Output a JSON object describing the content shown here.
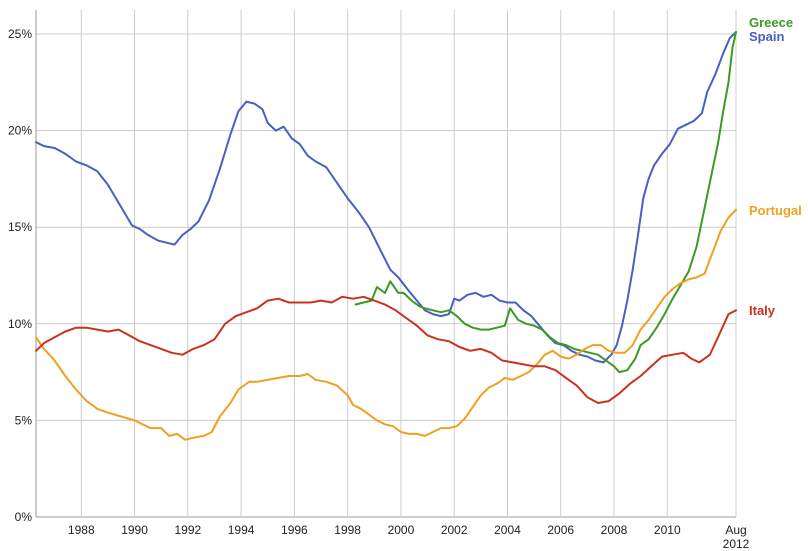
{
  "chart_data": {
    "type": "line",
    "title": "",
    "xlabel": "",
    "ylabel": "",
    "xlim": [
      1986.3,
      2012.58
    ],
    "ylim": [
      0,
      25
    ],
    "grid": true,
    "legend": "labels at right end of lines",
    "y_ticks": [
      {
        "value": 0,
        "label": "0%"
      },
      {
        "value": 5,
        "label": "5%"
      },
      {
        "value": 10,
        "label": "10%"
      },
      {
        "value": 15,
        "label": "15%"
      },
      {
        "value": 20,
        "label": "20%"
      },
      {
        "value": 25,
        "label": "25%"
      }
    ],
    "x_ticks": [
      {
        "value": 1988,
        "label": "1988"
      },
      {
        "value": 1990,
        "label": "1990"
      },
      {
        "value": 1992,
        "label": "1992"
      },
      {
        "value": 1994,
        "label": "1994"
      },
      {
        "value": 1996,
        "label": "1996"
      },
      {
        "value": 1998,
        "label": "1998"
      },
      {
        "value": 2000,
        "label": "2000"
      },
      {
        "value": 2002,
        "label": "2002"
      },
      {
        "value": 2004,
        "label": "2004"
      },
      {
        "value": 2006,
        "label": "2006"
      },
      {
        "value": 2008,
        "label": "2008"
      },
      {
        "value": 2010,
        "label": "2010"
      }
    ],
    "end_tick": {
      "value": 2012.58,
      "label_line1": "Aug",
      "label_line2": "2012"
    },
    "series": [
      {
        "name": "Spain",
        "color": "#4a5fc1",
        "points": [
          [
            1986.3,
            19.4
          ],
          [
            1986.6,
            19.2
          ],
          [
            1987.0,
            19.1
          ],
          [
            1987.4,
            18.8
          ],
          [
            1987.8,
            18.4
          ],
          [
            1988.2,
            18.2
          ],
          [
            1988.6,
            17.9
          ],
          [
            1989.0,
            17.2
          ],
          [
            1989.3,
            16.5
          ],
          [
            1989.6,
            15.8
          ],
          [
            1989.9,
            15.1
          ],
          [
            1990.2,
            14.9
          ],
          [
            1990.5,
            14.6
          ],
          [
            1990.9,
            14.3
          ],
          [
            1991.2,
            14.2
          ],
          [
            1991.5,
            14.1
          ],
          [
            1991.8,
            14.6
          ],
          [
            1992.1,
            14.9
          ],
          [
            1992.4,
            15.3
          ],
          [
            1992.8,
            16.4
          ],
          [
            1993.2,
            18.0
          ],
          [
            1993.6,
            19.8
          ],
          [
            1993.9,
            21.0
          ],
          [
            1994.2,
            21.5
          ],
          [
            1994.5,
            21.4
          ],
          [
            1994.8,
            21.1
          ],
          [
            1995.0,
            20.4
          ],
          [
            1995.3,
            20.0
          ],
          [
            1995.6,
            20.2
          ],
          [
            1995.9,
            19.6
          ],
          [
            1996.2,
            19.3
          ],
          [
            1996.5,
            18.7
          ],
          [
            1996.8,
            18.4
          ],
          [
            1997.2,
            18.1
          ],
          [
            1997.6,
            17.3
          ],
          [
            1998.0,
            16.5
          ],
          [
            1998.4,
            15.8
          ],
          [
            1998.8,
            15.0
          ],
          [
            1999.2,
            13.9
          ],
          [
            1999.6,
            12.8
          ],
          [
            1999.9,
            12.4
          ],
          [
            2000.3,
            11.7
          ],
          [
            2000.6,
            11.2
          ],
          [
            2000.9,
            10.7
          ],
          [
            2001.2,
            10.5
          ],
          [
            2001.5,
            10.4
          ],
          [
            2001.8,
            10.5
          ],
          [
            2002.0,
            11.3
          ],
          [
            2002.2,
            11.2
          ],
          [
            2002.5,
            11.5
          ],
          [
            2002.8,
            11.6
          ],
          [
            2003.1,
            11.4
          ],
          [
            2003.4,
            11.5
          ],
          [
            2003.7,
            11.2
          ],
          [
            2004.0,
            11.1
          ],
          [
            2004.3,
            11.1
          ],
          [
            2004.6,
            10.7
          ],
          [
            2004.9,
            10.4
          ],
          [
            2005.2,
            9.9
          ],
          [
            2005.5,
            9.4
          ],
          [
            2005.8,
            9.0
          ],
          [
            2006.1,
            8.9
          ],
          [
            2006.4,
            8.6
          ],
          [
            2006.7,
            8.4
          ],
          [
            2007.0,
            8.3
          ],
          [
            2007.3,
            8.1
          ],
          [
            2007.6,
            8.0
          ],
          [
            2007.9,
            8.4
          ],
          [
            2008.1,
            8.9
          ],
          [
            2008.3,
            9.9
          ],
          [
            2008.5,
            11.2
          ],
          [
            2008.7,
            12.8
          ],
          [
            2008.9,
            14.6
          ],
          [
            2009.1,
            16.5
          ],
          [
            2009.3,
            17.5
          ],
          [
            2009.5,
            18.2
          ],
          [
            2009.8,
            18.8
          ],
          [
            2010.1,
            19.3
          ],
          [
            2010.4,
            20.1
          ],
          [
            2010.7,
            20.3
          ],
          [
            2011.0,
            20.5
          ],
          [
            2011.3,
            20.9
          ],
          [
            2011.5,
            22.0
          ],
          [
            2011.8,
            22.9
          ],
          [
            2012.1,
            24.0
          ],
          [
            2012.35,
            24.8
          ],
          [
            2012.58,
            25.1
          ]
        ]
      },
      {
        "name": "Greece",
        "color": "#3b9a24",
        "points": [
          [
            1998.3,
            11.0
          ],
          [
            1998.6,
            11.1
          ],
          [
            1998.9,
            11.2
          ],
          [
            1999.1,
            11.9
          ],
          [
            1999.4,
            11.6
          ],
          [
            1999.6,
            12.2
          ],
          [
            1999.9,
            11.6
          ],
          [
            2000.1,
            11.6
          ],
          [
            2000.4,
            11.2
          ],
          [
            2000.7,
            10.9
          ],
          [
            2000.9,
            10.8
          ],
          [
            2001.2,
            10.7
          ],
          [
            2001.5,
            10.6
          ],
          [
            2001.8,
            10.7
          ],
          [
            2002.1,
            10.4
          ],
          [
            2002.4,
            10.0
          ],
          [
            2002.7,
            9.8
          ],
          [
            2003.0,
            9.7
          ],
          [
            2003.3,
            9.7
          ],
          [
            2003.6,
            9.8
          ],
          [
            2003.9,
            9.9
          ],
          [
            2004.1,
            10.8
          ],
          [
            2004.4,
            10.2
          ],
          [
            2004.7,
            10.0
          ],
          [
            2005.0,
            9.9
          ],
          [
            2005.3,
            9.7
          ],
          [
            2005.6,
            9.3
          ],
          [
            2005.9,
            9.0
          ],
          [
            2006.2,
            8.9
          ],
          [
            2006.5,
            8.7
          ],
          [
            2006.8,
            8.6
          ],
          [
            2007.1,
            8.5
          ],
          [
            2007.4,
            8.4
          ],
          [
            2007.7,
            8.1
          ],
          [
            2008.0,
            7.8
          ],
          [
            2008.2,
            7.5
          ],
          [
            2008.5,
            7.6
          ],
          [
            2008.8,
            8.2
          ],
          [
            2009.0,
            8.9
          ],
          [
            2009.3,
            9.2
          ],
          [
            2009.6,
            9.8
          ],
          [
            2009.9,
            10.5
          ],
          [
            2010.2,
            11.3
          ],
          [
            2010.5,
            12.0
          ],
          [
            2010.8,
            12.7
          ],
          [
            2011.1,
            14.0
          ],
          [
            2011.4,
            16.0
          ],
          [
            2011.7,
            18.0
          ],
          [
            2011.9,
            19.3
          ],
          [
            2012.1,
            21.0
          ],
          [
            2012.3,
            22.5
          ],
          [
            2012.45,
            24.3
          ],
          [
            2012.58,
            25.1
          ]
        ]
      },
      {
        "name": "Portugal",
        "color": "#f0a020",
        "points": [
          [
            1986.3,
            9.3
          ],
          [
            1986.6,
            8.7
          ],
          [
            1987.0,
            8.1
          ],
          [
            1987.4,
            7.3
          ],
          [
            1987.8,
            6.6
          ],
          [
            1988.2,
            6.0
          ],
          [
            1988.6,
            5.6
          ],
          [
            1989.0,
            5.4
          ],
          [
            1989.5,
            5.2
          ],
          [
            1990.0,
            5.0
          ],
          [
            1990.3,
            4.8
          ],
          [
            1990.6,
            4.6
          ],
          [
            1991.0,
            4.6
          ],
          [
            1991.3,
            4.2
          ],
          [
            1991.6,
            4.3
          ],
          [
            1991.9,
            4.0
          ],
          [
            1992.2,
            4.1
          ],
          [
            1992.6,
            4.2
          ],
          [
            1992.9,
            4.4
          ],
          [
            1993.2,
            5.2
          ],
          [
            1993.6,
            5.9
          ],
          [
            1993.9,
            6.6
          ],
          [
            1994.3,
            7.0
          ],
          [
            1994.6,
            7.0
          ],
          [
            1995.0,
            7.1
          ],
          [
            1995.4,
            7.2
          ],
          [
            1995.8,
            7.3
          ],
          [
            1996.2,
            7.3
          ],
          [
            1996.5,
            7.4
          ],
          [
            1996.8,
            7.1
          ],
          [
            1997.2,
            7.0
          ],
          [
            1997.6,
            6.8
          ],
          [
            1998.0,
            6.3
          ],
          [
            1998.2,
            5.8
          ],
          [
            1998.5,
            5.6
          ],
          [
            1998.8,
            5.3
          ],
          [
            1999.1,
            5.0
          ],
          [
            1999.4,
            4.8
          ],
          [
            1999.7,
            4.7
          ],
          [
            2000.0,
            4.4
          ],
          [
            2000.3,
            4.3
          ],
          [
            2000.6,
            4.3
          ],
          [
            2000.9,
            4.2
          ],
          [
            2001.2,
            4.4
          ],
          [
            2001.5,
            4.6
          ],
          [
            2001.8,
            4.6
          ],
          [
            2002.1,
            4.7
          ],
          [
            2002.4,
            5.1
          ],
          [
            2002.7,
            5.7
          ],
          [
            2003.0,
            6.3
          ],
          [
            2003.3,
            6.7
          ],
          [
            2003.6,
            6.9
          ],
          [
            2003.9,
            7.2
          ],
          [
            2004.2,
            7.1
          ],
          [
            2004.5,
            7.3
          ],
          [
            2004.8,
            7.5
          ],
          [
            2005.1,
            7.9
          ],
          [
            2005.4,
            8.4
          ],
          [
            2005.7,
            8.6
          ],
          [
            2006.0,
            8.3
          ],
          [
            2006.3,
            8.2
          ],
          [
            2006.6,
            8.4
          ],
          [
            2006.9,
            8.7
          ],
          [
            2007.2,
            8.9
          ],
          [
            2007.5,
            8.9
          ],
          [
            2007.8,
            8.6
          ],
          [
            2008.1,
            8.5
          ],
          [
            2008.4,
            8.5
          ],
          [
            2008.7,
            8.9
          ],
          [
            2009.0,
            9.7
          ],
          [
            2009.3,
            10.2
          ],
          [
            2009.6,
            10.8
          ],
          [
            2009.9,
            11.4
          ],
          [
            2010.2,
            11.8
          ],
          [
            2010.5,
            12.1
          ],
          [
            2010.8,
            12.3
          ],
          [
            2011.1,
            12.4
          ],
          [
            2011.4,
            12.6
          ],
          [
            2011.7,
            13.7
          ],
          [
            2012.0,
            14.8
          ],
          [
            2012.3,
            15.5
          ],
          [
            2012.58,
            15.9
          ]
        ]
      },
      {
        "name": "Italy",
        "color": "#c8321e",
        "points": [
          [
            1986.3,
            8.6
          ],
          [
            1986.6,
            9.0
          ],
          [
            1987.0,
            9.3
          ],
          [
            1987.4,
            9.6
          ],
          [
            1987.8,
            9.8
          ],
          [
            1988.2,
            9.8
          ],
          [
            1988.6,
            9.7
          ],
          [
            1989.0,
            9.6
          ],
          [
            1989.4,
            9.7
          ],
          [
            1989.8,
            9.4
          ],
          [
            1990.2,
            9.1
          ],
          [
            1990.6,
            8.9
          ],
          [
            1991.0,
            8.7
          ],
          [
            1991.4,
            8.5
          ],
          [
            1991.8,
            8.4
          ],
          [
            1992.2,
            8.7
          ],
          [
            1992.6,
            8.9
          ],
          [
            1993.0,
            9.2
          ],
          [
            1993.4,
            10.0
          ],
          [
            1993.8,
            10.4
          ],
          [
            1994.2,
            10.6
          ],
          [
            1994.6,
            10.8
          ],
          [
            1995.0,
            11.2
          ],
          [
            1995.4,
            11.3
          ],
          [
            1995.8,
            11.1
          ],
          [
            1996.2,
            11.1
          ],
          [
            1996.6,
            11.1
          ],
          [
            1997.0,
            11.2
          ],
          [
            1997.4,
            11.1
          ],
          [
            1997.8,
            11.4
          ],
          [
            1998.2,
            11.3
          ],
          [
            1998.6,
            11.4
          ],
          [
            1999.0,
            11.2
          ],
          [
            1999.4,
            11.0
          ],
          [
            1999.8,
            10.7
          ],
          [
            2000.2,
            10.3
          ],
          [
            2000.6,
            9.9
          ],
          [
            2001.0,
            9.4
          ],
          [
            2001.4,
            9.2
          ],
          [
            2001.8,
            9.1
          ],
          [
            2002.2,
            8.8
          ],
          [
            2002.6,
            8.6
          ],
          [
            2003.0,
            8.7
          ],
          [
            2003.4,
            8.5
          ],
          [
            2003.8,
            8.1
          ],
          [
            2004.2,
            8.0
          ],
          [
            2004.6,
            7.9
          ],
          [
            2005.0,
            7.8
          ],
          [
            2005.4,
            7.8
          ],
          [
            2005.8,
            7.6
          ],
          [
            2006.2,
            7.2
          ],
          [
            2006.6,
            6.8
          ],
          [
            2007.0,
            6.2
          ],
          [
            2007.4,
            5.9
          ],
          [
            2007.8,
            6.0
          ],
          [
            2008.2,
            6.4
          ],
          [
            2008.6,
            6.9
          ],
          [
            2009.0,
            7.3
          ],
          [
            2009.4,
            7.8
          ],
          [
            2009.8,
            8.3
          ],
          [
            2010.2,
            8.4
          ],
          [
            2010.6,
            8.5
          ],
          [
            2010.9,
            8.2
          ],
          [
            2011.2,
            8.0
          ],
          [
            2011.6,
            8.4
          ],
          [
            2012.0,
            9.6
          ],
          [
            2012.3,
            10.5
          ],
          [
            2012.58,
            10.7
          ]
        ]
      }
    ]
  }
}
